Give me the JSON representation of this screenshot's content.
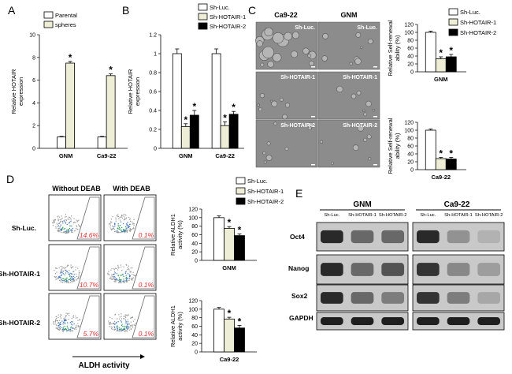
{
  "panels": {
    "A": "A",
    "B": "B",
    "C": "C",
    "D": "D",
    "E": "E"
  },
  "colors": {
    "white_bar": "#ffffff",
    "beige_bar": "#eeeed6",
    "black_bar": "#000000",
    "axis": "#000000",
    "percent_text": "#e03030"
  },
  "chart_data": [
    {
      "id": "A",
      "type": "bar",
      "categories": [
        "GNM",
        "Ca9-22"
      ],
      "series": [
        {
          "name": "Parental",
          "values": [
            1,
            1
          ],
          "errors": [
            0.05,
            0.05
          ],
          "color": "#ffffff"
        },
        {
          "name": "spheres",
          "values": [
            7.5,
            6.4
          ],
          "errors": [
            0.15,
            0.15
          ],
          "color": "#eeeed6"
        }
      ],
      "significance": [
        [
          false,
          true
        ],
        [
          false,
          true
        ]
      ],
      "ylabel": "Relative HOTAIR expression",
      "ylim": [
        0,
        10
      ],
      "yticks": [
        "0",
        "2",
        "4",
        "6",
        "8",
        "10"
      ],
      "legend_position": "top-left"
    },
    {
      "id": "B",
      "type": "bar",
      "categories": [
        "GNM",
        "Ca9-22"
      ],
      "series": [
        {
          "name": "Sh-Luc.",
          "values": [
            1.0,
            1.0
          ],
          "errors": [
            0.05,
            0.05
          ],
          "color": "#ffffff"
        },
        {
          "name": "Sh-HOTAIR-1",
          "values": [
            0.23,
            0.24
          ],
          "errors": [
            0.03,
            0.04
          ],
          "color": "#eeeed6"
        },
        {
          "name": "Sh-HOTAIR-2",
          "values": [
            0.35,
            0.36
          ],
          "errors": [
            0.05,
            0.03
          ],
          "color": "#000000"
        }
      ],
      "significance": [
        [
          false,
          true,
          true
        ],
        [
          false,
          true,
          true
        ]
      ],
      "ylabel": "Relative HOTAIR expression",
      "ylim": [
        0,
        1.2
      ],
      "yticks": [
        "0",
        "0.2",
        "0.4",
        "0.6",
        "0.8",
        "1",
        "1.2"
      ],
      "legend_position": "top-right"
    },
    {
      "id": "C1",
      "type": "bar",
      "categories": [
        "GNM"
      ],
      "series": [
        {
          "name": "Sh-Luc.",
          "values": [
            100
          ],
          "errors": [
            3
          ],
          "color": "#ffffff"
        },
        {
          "name": "Sh-HOTAIR-1",
          "values": [
            33
          ],
          "errors": [
            5
          ],
          "color": "#eeeed6"
        },
        {
          "name": "Sh-HOTAIR-2",
          "values": [
            38
          ],
          "errors": [
            6
          ],
          "color": "#000000"
        }
      ],
      "significance": [
        [
          false,
          true,
          true
        ]
      ],
      "ylabel": "Relative Self-renewal ability (%)",
      "ylim": [
        0,
        120
      ],
      "yticks": [
        "0",
        "20",
        "40",
        "60",
        "80",
        "100",
        "120"
      ],
      "legend_position": "top-right"
    },
    {
      "id": "C2",
      "type": "bar",
      "categories": [
        "Ca9-22"
      ],
      "series": [
        {
          "name": "Sh-Luc.",
          "values": [
            100
          ],
          "errors": [
            3
          ],
          "color": "#ffffff"
        },
        {
          "name": "Sh-HOTAIR-1",
          "values": [
            28
          ],
          "errors": [
            3
          ],
          "color": "#eeeed6"
        },
        {
          "name": "Sh-HOTAIR-2",
          "values": [
            27
          ],
          "errors": [
            4
          ],
          "color": "#000000"
        }
      ],
      "significance": [
        [
          false,
          true,
          true
        ]
      ],
      "ylabel": "Relative Self-renewal ability (%)",
      "ylim": [
        0,
        120
      ],
      "yticks": [
        "0",
        "20",
        "40",
        "60",
        "80",
        "100",
        "120"
      ]
    },
    {
      "id": "D1",
      "type": "bar",
      "categories": [
        "GNM"
      ],
      "series": [
        {
          "name": "Sh-Luc.",
          "values": [
            100
          ],
          "errors": [
            4
          ],
          "color": "#ffffff"
        },
        {
          "name": "Sh-HOTAIR-1",
          "values": [
            75
          ],
          "errors": [
            4
          ],
          "color": "#eeeed6"
        },
        {
          "name": "Sh-HOTAIR-2",
          "values": [
            58
          ],
          "errors": [
            4
          ],
          "color": "#000000"
        }
      ],
      "significance": [
        [
          false,
          true,
          true
        ]
      ],
      "ylabel": "Relative ALDH1 activity (%)",
      "ylim": [
        0,
        120
      ],
      "yticks": [
        "0",
        "20",
        "40",
        "60",
        "80",
        "100",
        "120"
      ],
      "legend_position": "top-right"
    },
    {
      "id": "D2",
      "type": "bar",
      "categories": [
        "Ca9-22"
      ],
      "series": [
        {
          "name": "Sh-Luc.",
          "values": [
            100
          ],
          "errors": [
            4
          ],
          "color": "#ffffff"
        },
        {
          "name": "Sh-HOTAIR-1",
          "values": [
            77
          ],
          "errors": [
            4
          ],
          "color": "#eeeed6"
        },
        {
          "name": "Sh-HOTAIR-2",
          "values": [
            56
          ],
          "errors": [
            6
          ],
          "color": "#000000"
        }
      ],
      "significance": [
        [
          false,
          true,
          true
        ]
      ],
      "ylabel": "Relative ALDH1 activity (%)",
      "ylim": [
        0,
        120
      ],
      "yticks": [
        "0",
        "20",
        "40",
        "60",
        "80",
        "100",
        "120"
      ]
    }
  ],
  "micrographs": {
    "col_labels": [
      "Ca9-22",
      "GNM"
    ],
    "row_labels": [
      [
        "Sh-Luc.",
        "Sh-Luc."
      ],
      [
        "Sh-HOTAIR-1",
        "Sh-HOTAIR-1"
      ],
      [
        "Sh-HOTAIR-2",
        "Sh-HOTAIR-2"
      ]
    ]
  },
  "flow": {
    "col_labels": [
      "Without DEAB",
      "With DEAB"
    ],
    "row_labels": [
      "Sh-Luc.",
      "Sh-HOTAIR-1",
      "Sh-HOTAIR-2"
    ],
    "percentages": [
      [
        "14.6%",
        "0.1%"
      ],
      [
        "10.7%",
        "0.1%"
      ],
      [
        "5.7%",
        "0.1%"
      ]
    ],
    "xlabel": "ALDH activity"
  },
  "blot": {
    "groups": [
      "GNM",
      "Ca9-22"
    ],
    "lanes": [
      "Sh-Luc.",
      "Sh-HOTAIR-1",
      "Sh-HOTAIR-2"
    ],
    "proteins": [
      "Oct4",
      "Nanog",
      "Sox2",
      "GAPDH"
    ],
    "intensity": {
      "GNM": [
        [
          0.9,
          0.6,
          0.6
        ],
        [
          0.9,
          0.6,
          0.7
        ],
        [
          0.9,
          0.6,
          0.5
        ],
        [
          0.95,
          0.95,
          0.95
        ]
      ],
      "Ca9-22": [
        [
          0.9,
          0.4,
          0.25
        ],
        [
          0.85,
          0.45,
          0.35
        ],
        [
          0.85,
          0.5,
          0.3
        ],
        [
          0.95,
          0.95,
          0.95
        ]
      ]
    }
  }
}
